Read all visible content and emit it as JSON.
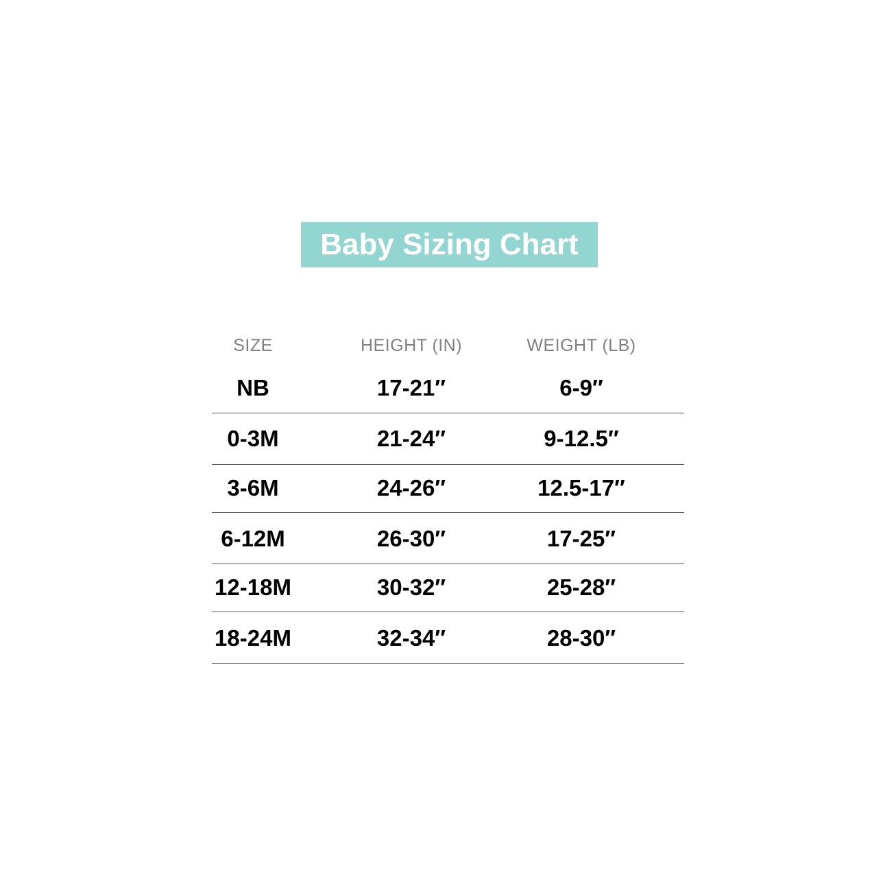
{
  "title": "Baby Sizing Chart",
  "colors": {
    "banner": "#93d5d1",
    "header_text": "#808080",
    "cell_text": "#000000"
  },
  "table": {
    "headers": [
      "SIZE",
      "HEIGHT (IN)",
      "WEIGHT (LB)"
    ],
    "rows": [
      [
        "NB",
        "17-21″",
        "6-9″"
      ],
      [
        "0-3M",
        "21-24″",
        "9-12.5″"
      ],
      [
        "3-6M",
        "24-26″",
        "12.5-17″"
      ],
      [
        "6-12M",
        "26-30″",
        "17-25″"
      ],
      [
        "12-18M",
        "30-32″",
        "25-28″"
      ],
      [
        "18-24M",
        "32-34″",
        "28-30″"
      ]
    ]
  }
}
